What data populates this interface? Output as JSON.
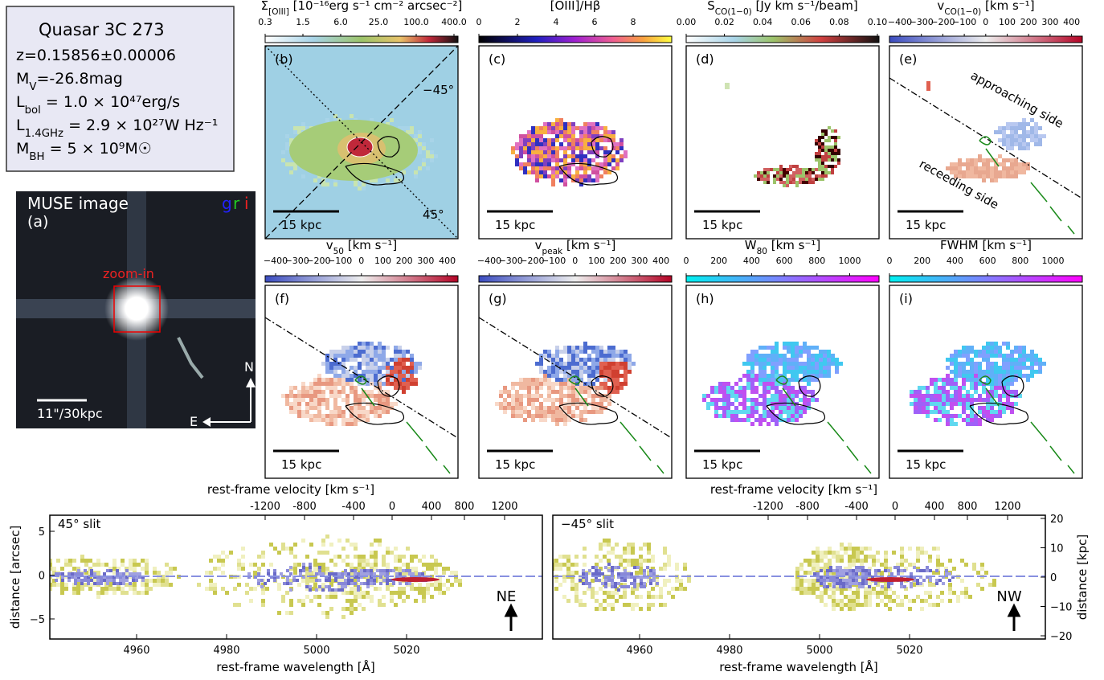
{
  "info_box": {
    "title": "Quasar 3C 273",
    "lines": [
      {
        "main": "z=0.15856±0.00006"
      },
      {
        "main": "M",
        "sub": "V",
        "rest": "=-26.8mag"
      },
      {
        "main": "L",
        "sub": "bol",
        "rest": " = 1.0 × 10⁴⁷erg/s"
      },
      {
        "main": "L",
        "sub": "1.4GHz",
        "rest": " = 2.9 × 10²⁷W Hz⁻¹"
      },
      {
        "main": "M",
        "sub": "BH",
        "rest": " = 5 × 10⁹M☉"
      }
    ]
  },
  "muse": {
    "title": "MUSE image",
    "label": "(a)",
    "bands": [
      "g",
      "r",
      "i"
    ],
    "zoom": "zoom-in",
    "scale": "11\"/30kpc",
    "north": "N",
    "east": "E"
  },
  "panels": [
    {
      "label": "(b)",
      "scale": "15 kpc",
      "annotations": [
        "−45°",
        "45°"
      ],
      "colorbar": {
        "title": {
          "main": "Σ",
          "sub": "[OIII]",
          "rest": " [10⁻¹⁶erg s⁻¹ cm⁻² arcsec⁻²]"
        },
        "ticks": [
          "0.3",
          "1.5",
          "6.0",
          "25.0",
          "100.0",
          "400.0"
        ]
      }
    },
    {
      "label": "(c)",
      "scale": "15 kpc",
      "colorbar": {
        "title": {
          "main": "[OIII]/Hβ"
        },
        "ticks": [
          "0",
          "2",
          "4",
          "6",
          "8"
        ]
      }
    },
    {
      "label": "(d)",
      "scale": "15 kpc",
      "colorbar": {
        "title": {
          "main": "S",
          "sub": "CO(1−0)",
          "rest": " [Jy km s⁻¹/beam]"
        },
        "ticks": [
          "0.00",
          "0.02",
          "0.04",
          "0.06",
          "0.08",
          "0.10"
        ]
      }
    },
    {
      "label": "(e)",
      "scale": "15 kpc",
      "annotations": [
        "approaching side",
        "receeding side"
      ],
      "colorbar": {
        "title": {
          "main": "v",
          "sub": "CO(1−0)",
          "rest": " [km s⁻¹]"
        },
        "ticks": [
          "−400",
          "−300",
          "−200",
          "−100",
          "0",
          "100",
          "200",
          "300",
          "400"
        ]
      }
    },
    {
      "label": "(f)",
      "scale": "15 kpc",
      "colorbar": {
        "title": {
          "main": "v",
          "sub": "50",
          "rest": " [km s⁻¹]"
        },
        "ticks": [
          "−400",
          "−300",
          "−200",
          "−100",
          "0",
          "100",
          "200",
          "300",
          "400"
        ]
      }
    },
    {
      "label": "(g)",
      "scale": "15 kpc",
      "colorbar": {
        "title": {
          "main": "v",
          "sub": "peak",
          "rest": " [km s⁻¹]"
        },
        "ticks": [
          "−400",
          "−300",
          "−200",
          "−100",
          "0",
          "100",
          "200",
          "300",
          "400"
        ]
      }
    },
    {
      "label": "(h)",
      "scale": "15 kpc",
      "colorbar": {
        "title": {
          "main": "W",
          "sub": "80",
          "rest": " [km s⁻¹]"
        },
        "ticks": [
          "0",
          "200",
          "400",
          "600",
          "800",
          "1000"
        ]
      }
    },
    {
      "label": "(i)",
      "scale": "15 kpc",
      "colorbar": {
        "title": {
          "main": "FWHM [km s⁻¹]"
        },
        "ticks": [
          "0",
          "200",
          "400",
          "600",
          "800",
          "1000"
        ]
      }
    }
  ],
  "spectra": {
    "velocity_label": "rest-frame velocity [km s⁻¹]",
    "velocity_ticks": [
      "-1200",
      "-800",
      "-400",
      "0",
      "400",
      "800",
      "1200"
    ],
    "x_label": "rest-frame wavelength [Å]",
    "x_ticks": [
      "4960",
      "4980",
      "5000",
      "5020"
    ],
    "y_label": "distance [arcsec]",
    "y_ticks": [
      "5",
      "0",
      "−5"
    ],
    "y2_label": "distance [kpc]",
    "y2_ticks": [
      "20",
      "10",
      "0",
      "−10",
      "−20"
    ],
    "panels": [
      {
        "label": "45° slit",
        "arrow": "NE"
      },
      {
        "label": "−45° slit",
        "arrow": "NW"
      }
    ]
  }
}
